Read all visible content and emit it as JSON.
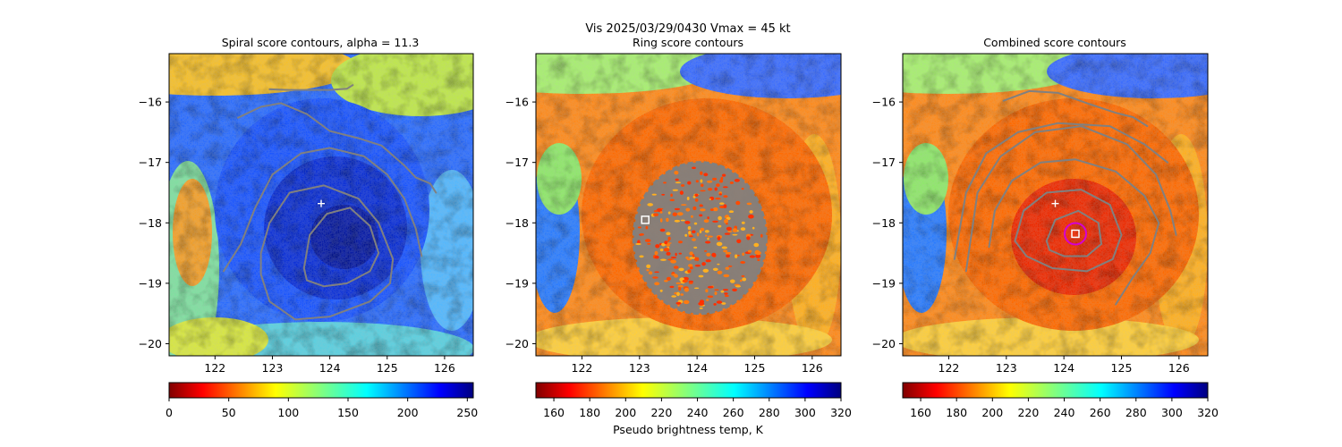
{
  "figure": {
    "suptitle_line1": "Vis  2025/03/29/0430    Vmax = 45 kt",
    "colorbar_label": "Pseudo brightness temp, K"
  },
  "chart_data": [
    {
      "type": "heatmap",
      "title": "Spiral score contours, alpha = 11.3",
      "xlim": [
        121.2,
        126.5
      ],
      "ylim": [
        -20.2,
        -15.2
      ],
      "xticks": [
        122,
        123,
        124,
        125,
        126
      ],
      "yticks": [
        -16,
        -17,
        -18,
        -19,
        -20
      ],
      "colormap": "jet_r",
      "colorbar": {
        "range": [
          0,
          255
        ],
        "ticks": [
          0,
          50,
          100,
          150,
          200,
          250
        ]
      },
      "markers": [
        {
          "symbol": "plus",
          "color": "#ffffff",
          "x": 123.85,
          "y": -17.68
        }
      ],
      "contours": {
        "color": "#808080",
        "lines": [
          [
            [
              122.4,
              -16.26
            ],
            [
              122.8,
              -16.08
            ],
            [
              123.15,
              -16.02
            ],
            [
              123.6,
              -16.2
            ],
            [
              124.0,
              -16.48
            ],
            [
              124.5,
              -16.6
            ],
            [
              124.9,
              -16.72
            ],
            [
              125.3,
              -17.05
            ],
            [
              125.5,
              -17.25
            ],
            [
              125.75,
              -17.35
            ],
            [
              125.85,
              -17.5
            ]
          ],
          [
            [
              122.95,
              -15.79
            ],
            [
              123.3,
              -15.8
            ],
            [
              123.6,
              -15.8
            ],
            [
              124.0,
              -15.8
            ],
            [
              124.3,
              -15.78
            ],
            [
              124.4,
              -15.72
            ]
          ],
          [
            [
              122.15,
              -18.8
            ],
            [
              122.45,
              -18.35
            ],
            [
              122.7,
              -17.75
            ],
            [
              123.0,
              -17.2
            ],
            [
              123.5,
              -16.85
            ],
            [
              124.0,
              -16.76
            ],
            [
              124.6,
              -16.9
            ],
            [
              125.0,
              -17.2
            ],
            [
              125.3,
              -17.6
            ],
            [
              125.5,
              -18.1
            ],
            [
              125.6,
              -18.55
            ]
          ],
          [
            [
              122.8,
              -18.5
            ],
            [
              122.95,
              -18.0
            ],
            [
              123.3,
              -17.5
            ],
            [
              123.9,
              -17.38
            ],
            [
              124.5,
              -17.6
            ],
            [
              124.85,
              -18.0
            ],
            [
              125.1,
              -18.6
            ],
            [
              125.05,
              -19.0
            ],
            [
              124.7,
              -19.3
            ],
            [
              124.0,
              -19.55
            ],
            [
              123.4,
              -19.6
            ],
            [
              122.95,
              -19.3
            ],
            [
              122.8,
              -18.85
            ],
            [
              122.8,
              -18.5
            ]
          ],
          [
            [
              123.55,
              -18.75
            ],
            [
              123.65,
              -18.2
            ],
            [
              123.95,
              -17.85
            ],
            [
              124.35,
              -17.75
            ],
            [
              124.7,
              -18.05
            ],
            [
              124.85,
              -18.5
            ],
            [
              124.7,
              -18.8
            ],
            [
              124.3,
              -19.0
            ],
            [
              123.9,
              -19.05
            ],
            [
              123.6,
              -18.95
            ],
            [
              123.55,
              -18.75
            ]
          ]
        ]
      }
    },
    {
      "type": "heatmap",
      "title": "Ring score contours",
      "xlim": [
        121.2,
        126.5
      ],
      "ylim": [
        -20.2,
        -15.2
      ],
      "xticks": [
        122,
        123,
        124,
        125,
        126
      ],
      "yticks": [
        -16,
        -17,
        -18,
        -19,
        -20
      ],
      "colormap": "jet_r",
      "colorbar": {
        "range": [
          150,
          320
        ],
        "ticks": [
          160,
          180,
          200,
          220,
          240,
          260,
          280,
          300,
          320
        ]
      },
      "markers": [
        {
          "symbol": "square",
          "color": "#ffffff",
          "x": 123.1,
          "y": -17.95
        }
      ],
      "ring_region": {
        "color": "#808080",
        "center": [
          124.05,
          -18.25
        ],
        "radius_x": 1.15,
        "radius_y": 1.25
      }
    },
    {
      "type": "heatmap",
      "title": "Combined score contours",
      "xlim": [
        121.2,
        126.5
      ],
      "ylim": [
        -20.2,
        -15.2
      ],
      "xticks": [
        122,
        123,
        124,
        125,
        126
      ],
      "yticks": [
        -16,
        -17,
        -18,
        -19,
        -20
      ],
      "colormap": "jet_r",
      "colorbar": {
        "range": [
          150,
          320
        ],
        "ticks": [
          160,
          180,
          200,
          220,
          240,
          260,
          280,
          300,
          320
        ]
      },
      "markers": [
        {
          "symbol": "plus",
          "color": "#ffffff",
          "x": 123.85,
          "y": -17.68
        },
        {
          "symbol": "square",
          "color": "#ffffff",
          "x": 124.2,
          "y": -18.18
        },
        {
          "symbol": "circle",
          "color": "#d400d4",
          "x": 124.2,
          "y": -18.18
        }
      ],
      "contours": {
        "color": "#808080",
        "lines": [
          [
            [
              122.95,
              -15.98
            ],
            [
              123.4,
              -15.82
            ],
            [
              123.9,
              -15.85
            ],
            [
              124.4,
              -16.02
            ],
            [
              124.9,
              -16.18
            ],
            [
              125.2,
              -16.25
            ],
            [
              125.45,
              -16.4
            ]
          ],
          [
            [
              122.7,
              -18.4
            ],
            [
              122.8,
              -17.8
            ],
            [
              123.1,
              -17.3
            ],
            [
              123.6,
              -17.0
            ],
            [
              124.2,
              -16.95
            ],
            [
              124.9,
              -17.15
            ],
            [
              125.4,
              -17.55
            ],
            [
              125.65,
              -18.0
            ],
            [
              125.5,
              -18.5
            ],
            [
              125.2,
              -18.9
            ],
            [
              124.9,
              -19.35
            ]
          ],
          [
            [
              122.3,
              -18.8
            ],
            [
              122.5,
              -17.5
            ],
            [
              122.9,
              -16.9
            ],
            [
              123.5,
              -16.5
            ],
            [
              124.3,
              -16.4
            ],
            [
              125.1,
              -16.7
            ],
            [
              125.6,
              -17.2
            ],
            [
              125.85,
              -17.8
            ],
            [
              125.95,
              -18.2
            ]
          ],
          [
            [
              122.1,
              -18.6
            ],
            [
              122.3,
              -17.5
            ],
            [
              122.65,
              -16.85
            ],
            [
              123.2,
              -16.5
            ],
            [
              123.9,
              -16.35
            ],
            [
              124.8,
              -16.4
            ],
            [
              125.4,
              -16.7
            ],
            [
              125.8,
              -17.0
            ]
          ],
          [
            [
              123.15,
              -18.3
            ],
            [
              123.3,
              -17.8
            ],
            [
              123.7,
              -17.5
            ],
            [
              124.3,
              -17.45
            ],
            [
              124.8,
              -17.7
            ],
            [
              125.0,
              -18.2
            ],
            [
              124.85,
              -18.6
            ],
            [
              124.4,
              -18.8
            ],
            [
              123.8,
              -18.75
            ],
            [
              123.35,
              -18.55
            ],
            [
              123.15,
              -18.3
            ]
          ],
          [
            [
              123.7,
              -18.3
            ],
            [
              123.85,
              -17.95
            ],
            [
              124.25,
              -17.8
            ],
            [
              124.6,
              -18.0
            ],
            [
              124.65,
              -18.35
            ],
            [
              124.4,
              -18.55
            ],
            [
              124.0,
              -18.55
            ],
            [
              123.75,
              -18.45
            ],
            [
              123.7,
              -18.3
            ]
          ]
        ]
      }
    }
  ]
}
